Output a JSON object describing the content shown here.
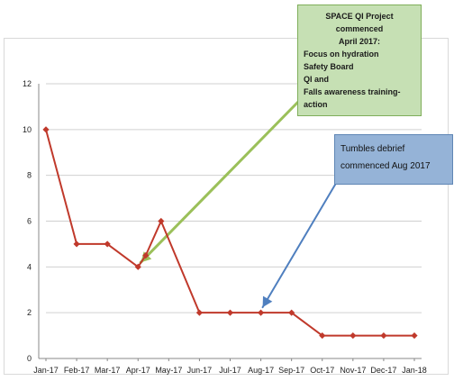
{
  "chart_data": {
    "type": "line",
    "categories": [
      "Jan-17",
      "Feb-17",
      "Mar-17",
      "Apr-17",
      "May-17",
      "Jun-17",
      "Jul-17",
      "Aug-17",
      "Sep-17",
      "Oct-17",
      "Nov-17",
      "Dec-17",
      "Jan-18"
    ],
    "x": [
      0,
      1,
      2,
      3,
      3.25,
      3.75,
      5,
      6,
      7,
      8,
      9,
      10,
      11,
      12
    ],
    "series": [
      {
        "values": [
          10,
          5,
          5,
          4,
          4.5,
          6,
          2,
          2,
          2,
          2,
          1,
          1,
          1,
          1
        ],
        "color": "#c0392b"
      }
    ],
    "ylim": [
      0,
      12
    ],
    "yticks": [
      0,
      2,
      4,
      6,
      8,
      10,
      12
    ],
    "grid": true,
    "annotations": [
      {
        "lines": [
          "SPACE QI Project commenced",
          "April 2017:",
          "Focus on hydration",
          "Safety Board",
          "QI and",
          "Falls awareness training- action"
        ],
        "color": "#c6e0b4",
        "arrow_color": "#9bc05a",
        "points_to": {
          "x": 3,
          "y": 4
        }
      },
      {
        "lines": [
          "Tumbles debrief",
          "commenced Aug 2017"
        ],
        "color": "#95b3d7",
        "arrow_color": "#4f7fbf",
        "points_to": {
          "x": 7,
          "y": 2
        }
      }
    ]
  }
}
